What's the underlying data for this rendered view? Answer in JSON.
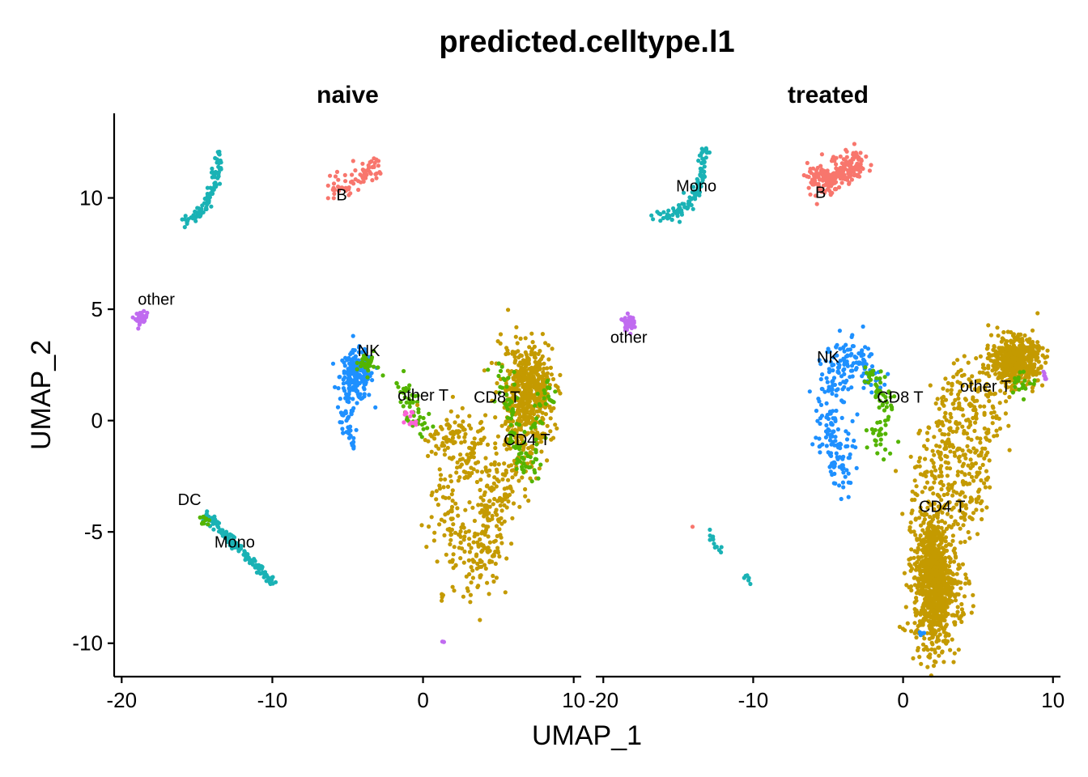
{
  "chart_data": {
    "type": "scatter",
    "title": "predicted.celltype.l1",
    "xlabel": "UMAP_1",
    "ylabel": "UMAP_2",
    "xlim": [
      -20.5,
      10.5
    ],
    "ylim": [
      -11.5,
      13.8
    ],
    "x_ticks": [
      -20,
      -10,
      0,
      10
    ],
    "y_ticks": [
      -10,
      -5,
      0,
      5,
      10
    ],
    "x_tick_labels": [
      "-20",
      "-10",
      "0",
      "10"
    ],
    "y_tick_labels": [
      "-10",
      "-5",
      "0",
      "5",
      "10"
    ],
    "legend": "none",
    "grid": false,
    "colors": {
      "B": "#F8766D",
      "CD4 T": "#C49A00",
      "CD8 T": "#53B400",
      "DC": "#00C094",
      "Mono": "#00B6EB",
      "NK": "#1E90FF",
      "Mono_teal": "#1AB2B5",
      "other": "#C06BF0",
      "other T": "#FB61D7"
    },
    "panels": [
      {
        "facet": "naive",
        "labels": [
          {
            "text": "B",
            "x": -5.4,
            "y": 9.9
          },
          {
            "text": "other",
            "x": -17.7,
            "y": 5.2
          },
          {
            "text": "NK",
            "x": -3.6,
            "y": 2.9
          },
          {
            "text": "other T",
            "x": 0.0,
            "y": 0.9
          },
          {
            "text": "CD8 T",
            "x": 4.9,
            "y": 0.8
          },
          {
            "text": "CD4 T",
            "x": 6.9,
            "y": -1.1
          },
          {
            "text": "DC",
            "x": -15.5,
            "y": -3.8
          },
          {
            "text": "Mono",
            "x": -12.5,
            "y": -5.7
          }
        ],
        "clusters": [
          {
            "name": "Mono",
            "color_key": "Mono_teal",
            "shape": "curve",
            "n": 110,
            "spread": 0.15,
            "path": [
              [
                -16.0,
                9.0
              ],
              [
                -15.0,
                9.2
              ],
              [
                -14.2,
                9.9
              ],
              [
                -13.8,
                10.8
              ],
              [
                -13.5,
                12.0
              ]
            ]
          },
          {
            "name": "B",
            "color_key": "B",
            "shape": "curve",
            "n": 70,
            "spread": 0.25,
            "path": [
              [
                -6.0,
                10.6
              ],
              [
                -5.0,
                10.5
              ],
              [
                -4.0,
                11.0
              ],
              [
                -2.9,
                11.4
              ]
            ]
          },
          {
            "name": "other",
            "color_key": "other",
            "shape": "blob",
            "n": 45,
            "cx": -18.7,
            "cy": 4.6,
            "rx": 0.35,
            "ry": 0.25
          },
          {
            "name": "NK",
            "color_key": "NK",
            "shape": "blob",
            "n": 200,
            "cx": -4.4,
            "cy": 2.0,
            "rx": 1.0,
            "ry": 1.0
          },
          {
            "name": "NK",
            "color_key": "NK",
            "shape": "curve",
            "n": 35,
            "spread": 0.25,
            "path": [
              [
                -5.0,
                1.0
              ],
              [
                -5.1,
                0.0
              ],
              [
                -4.9,
                -0.5
              ]
            ]
          },
          {
            "name": "NK",
            "color_key": "NK",
            "shape": "blob",
            "n": 8,
            "cx": -4.6,
            "cy": -1.1,
            "rx": 0.15,
            "ry": 0.2
          },
          {
            "name": "CD8 T",
            "color_key": "CD8 T",
            "shape": "blob",
            "n": 30,
            "cx": -3.7,
            "cy": 2.5,
            "rx": 0.7,
            "ry": 0.6
          },
          {
            "name": "other T",
            "color_key": "CD8 T",
            "shape": "curve",
            "n": 50,
            "spread": 0.35,
            "path": [
              [
                -1.8,
                1.5
              ],
              [
                -0.8,
                1.2
              ],
              [
                -0.9,
                0.2
              ],
              [
                0.3,
                -0.5
              ]
            ]
          },
          {
            "name": "other T",
            "color_key": "other T",
            "shape": "blob",
            "n": 12,
            "cx": -0.9,
            "cy": 0.1,
            "rx": 0.5,
            "ry": 0.3
          },
          {
            "name": "CD4 T",
            "color_key": "CD4 T",
            "shape": "blob",
            "n": 500,
            "cx": 7.0,
            "cy": 1.3,
            "rx": 1.6,
            "ry": 1.9
          },
          {
            "name": "CD4 T",
            "color_key": "CD4 T",
            "shape": "curve",
            "n": 260,
            "spread": 0.8,
            "path": [
              [
                7.0,
                0.0
              ],
              [
                6.0,
                -2.0
              ],
              [
                5.0,
                -3.5
              ],
              [
                4.5,
                -4.5
              ],
              [
                4.0,
                -6.5
              ]
            ]
          },
          {
            "name": "CD4 T",
            "color_key": "CD4 T",
            "shape": "curve",
            "n": 220,
            "spread": 0.75,
            "path": [
              [
                1.5,
                -0.5
              ],
              [
                3.0,
                -0.5
              ],
              [
                3.0,
                -2.0
              ],
              [
                2.0,
                -3.5
              ],
              [
                1.5,
                -5.0
              ],
              [
                2.0,
                -6.0
              ],
              [
                4.0,
                -7.2
              ]
            ]
          },
          {
            "name": "CD4 T",
            "color_key": "CD4 T",
            "shape": "curve",
            "n": 25,
            "spread": 0.35,
            "path": [
              [
                0.5,
                -0.8
              ],
              [
                1.4,
                -0.7
              ],
              [
                1.5,
                -1.2
              ]
            ]
          },
          {
            "name": "CD8 T",
            "color_key": "CD8 T",
            "shape": "curve",
            "n": 110,
            "spread": 0.35,
            "path": [
              [
                5.0,
                2.5
              ],
              [
                5.8,
                0.5
              ],
              [
                6.5,
                -1.5
              ],
              [
                7.2,
                -2.2
              ],
              [
                8.0,
                0.5
              ],
              [
                8.5,
                2.0
              ]
            ]
          },
          {
            "name": "CD4 T",
            "color_key": "CD4 T",
            "shape": "blob",
            "n": 4,
            "cx": 1.3,
            "cy": -8.0,
            "rx": 0.1,
            "ry": 0.2
          },
          {
            "name": "other",
            "color_key": "other",
            "shape": "blob",
            "n": 3,
            "cx": 1.3,
            "cy": -9.9,
            "rx": 0.1,
            "ry": 0.1
          },
          {
            "name": "Mono",
            "color_key": "Mono_teal",
            "shape": "curve",
            "n": 140,
            "spread": 0.12,
            "path": [
              [
                -14.5,
                -4.2
              ],
              [
                -13.0,
                -5.2
              ],
              [
                -11.5,
                -6.2
              ],
              [
                -10.0,
                -7.3
              ]
            ]
          },
          {
            "name": "DC",
            "color_key": "CD8 T",
            "shape": "blob",
            "n": 10,
            "cx": -14.5,
            "cy": -4.5,
            "rx": 0.3,
            "ry": 0.2
          }
        ]
      },
      {
        "facet": "treated",
        "labels": [
          {
            "text": "Mono",
            "x": -13.8,
            "y": 10.3
          },
          {
            "text": "B",
            "x": -5.5,
            "y": 10.0
          },
          {
            "text": "other",
            "x": -18.3,
            "y": 3.5
          },
          {
            "text": "NK",
            "x": -5.0,
            "y": 2.6
          },
          {
            "text": "CD8 T",
            "x": -0.2,
            "y": 0.8
          },
          {
            "text": "other T",
            "x": 5.5,
            "y": 1.3
          },
          {
            "text": "CD4 T",
            "x": 2.6,
            "y": -4.1
          }
        ],
        "clusters": [
          {
            "name": "Mono",
            "color_key": "Mono_teal",
            "shape": "curve",
            "n": 110,
            "spread": 0.15,
            "path": [
              [
                -16.5,
                9.1
              ],
              [
                -15.0,
                9.3
              ],
              [
                -14.0,
                9.9
              ],
              [
                -13.5,
                10.8
              ],
              [
                -13.2,
                12.2
              ]
            ]
          },
          {
            "name": "B",
            "color_key": "B",
            "shape": "curve",
            "n": 230,
            "spread": 0.35,
            "path": [
              [
                -6.0,
                10.8
              ],
              [
                -5.0,
                10.8
              ],
              [
                -4.0,
                11.3
              ],
              [
                -2.7,
                11.6
              ]
            ]
          },
          {
            "name": "other",
            "color_key": "other",
            "shape": "blob",
            "n": 60,
            "cx": -18.3,
            "cy": 4.4,
            "rx": 0.3,
            "ry": 0.3
          },
          {
            "name": "NK",
            "color_key": "NK",
            "shape": "curve",
            "n": 260,
            "spread": 0.55,
            "path": [
              [
                -1.8,
                1.8
              ],
              [
                -3.0,
                2.9
              ],
              [
                -4.5,
                2.5
              ],
              [
                -5.3,
                1.0
              ],
              [
                -5.0,
                -0.5
              ],
              [
                -4.0,
                -1.5
              ],
              [
                -3.9,
                -2.5
              ]
            ]
          },
          {
            "name": "CD8 T",
            "color_key": "CD8 T",
            "shape": "curve",
            "n": 70,
            "spread": 0.35,
            "path": [
              [
                -2.5,
                2.2
              ],
              [
                -1.4,
                1.4
              ],
              [
                -1.1,
                0.5
              ],
              [
                -1.5,
                -1.2
              ],
              [
                -2.0,
                -0.5
              ]
            ]
          },
          {
            "name": "CD4 T",
            "color_key": "CD4 T",
            "shape": "blob",
            "n": 550,
            "cx": 7.5,
            "cy": 2.7,
            "rx": 1.4,
            "ry": 0.9
          },
          {
            "name": "CD4 T",
            "color_key": "CD4 T",
            "shape": "curve",
            "n": 500,
            "spread": 0.9,
            "path": [
              [
                6.0,
                2.0
              ],
              [
                3.5,
                0.5
              ],
              [
                2.5,
                -1.5
              ],
              [
                1.8,
                -3.5
              ],
              [
                2.0,
                -5.5
              ],
              [
                2.8,
                -7.0
              ],
              [
                3.0,
                -8.5
              ],
              [
                1.8,
                -9.9
              ]
            ]
          },
          {
            "name": "CD4 T",
            "color_key": "CD4 T",
            "shape": "blob",
            "n": 700,
            "cx": 2.0,
            "cy": -7.2,
            "rx": 1.1,
            "ry": 2.6
          },
          {
            "name": "CD4 T",
            "color_key": "CD4 T",
            "shape": "curve",
            "n": 160,
            "spread": 0.7,
            "path": [
              [
                6.0,
                1.0
              ],
              [
                5.0,
                -1.0
              ],
              [
                4.5,
                -3.0
              ],
              [
                4.0,
                -4.5
              ]
            ]
          },
          {
            "name": "CD8 T",
            "color_key": "CD8 T",
            "shape": "blob",
            "n": 20,
            "cx": 8.0,
            "cy": 1.8,
            "rx": 0.8,
            "ry": 0.5
          },
          {
            "name": "other T",
            "color_key": "other",
            "shape": "blob",
            "n": 6,
            "cx": 9.5,
            "cy": 2.0,
            "rx": 0.2,
            "ry": 0.2
          },
          {
            "name": "Mono",
            "color_key": "Mono_teal",
            "shape": "curve",
            "n": 12,
            "spread": 0.1,
            "path": [
              [
                -13.0,
                -5.1
              ],
              [
                -12.2,
                -5.8
              ]
            ]
          },
          {
            "name": "Mono",
            "color_key": "Mono_teal",
            "shape": "curve",
            "n": 6,
            "spread": 0.08,
            "path": [
              [
                -10.6,
                -6.9
              ],
              [
                -10.1,
                -7.2
              ]
            ]
          },
          {
            "name": "B",
            "color_key": "B",
            "shape": "blob",
            "n": 1,
            "cx": -14.0,
            "cy": -4.8,
            "rx": 0.05,
            "ry": 0.05
          },
          {
            "name": "Mono",
            "color_key": "NK",
            "shape": "blob",
            "n": 4,
            "cx": 1.2,
            "cy": -9.6,
            "rx": 0.3,
            "ry": 0.2
          }
        ]
      }
    ]
  }
}
